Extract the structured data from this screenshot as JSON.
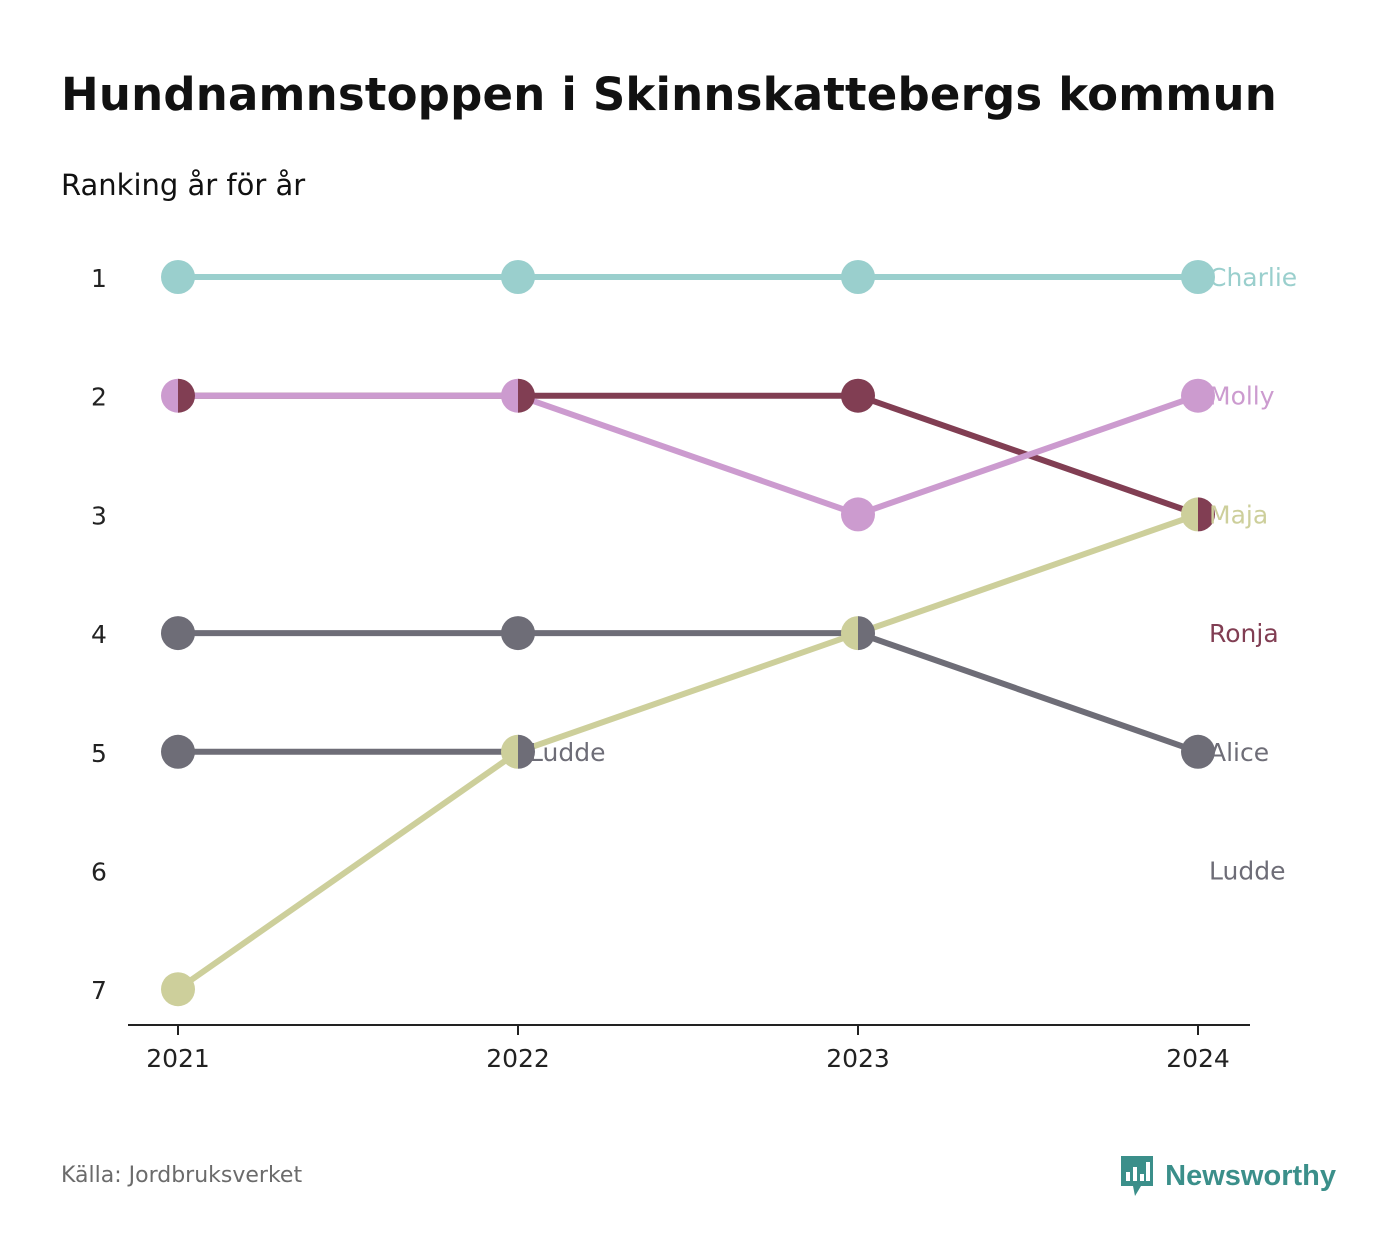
{
  "title": "Hundnamnstoppen i Skinnskattebergs kommun",
  "subtitle": "Ranking år för år",
  "source": "Källa: Jordbruksverket",
  "brand": {
    "name": "Newsworthy",
    "icon": "newsworthy-logo-icon",
    "color": "#3b8f8a"
  },
  "chart_data": {
    "type": "line",
    "x": [
      "2021",
      "2022",
      "2023",
      "2024"
    ],
    "y_ticks": [
      "1",
      "2",
      "3",
      "4",
      "5",
      "6",
      "7"
    ],
    "ylim": [
      1,
      7
    ],
    "y_inverted": true,
    "grid": false,
    "series": [
      {
        "name": "Charlie",
        "color": "#9acfcd",
        "values": [
          1,
          1,
          1,
          1
        ],
        "end_label": "Charlie",
        "end_rank": 1
      },
      {
        "name": "Ronja",
        "color": "#813e53",
        "values": [
          2,
          2,
          2,
          3
        ],
        "end_label": "Ronja",
        "end_rank": 4
      },
      {
        "name": "Molly",
        "color": "#cc9bcf",
        "values": [
          2,
          2,
          3,
          2
        ],
        "end_label": "Molly",
        "end_rank": 2
      },
      {
        "name": "Alice",
        "color": "#6e6d77",
        "values": [
          4,
          4,
          4,
          5
        ],
        "end_label": "Alice",
        "end_rank": 5
      },
      {
        "name": "Ludde",
        "color": "#6e6d77",
        "values": [
          5,
          5,
          null,
          null
        ],
        "end_label": "Ludde",
        "end_rank": 6
      },
      {
        "name": "Maja",
        "color": "#cdcf9b",
        "values": [
          7,
          5,
          4,
          3
        ],
        "end_label": "Maja",
        "end_rank": 3
      }
    ],
    "inline_labels": [
      {
        "text": "Ludde",
        "color": "#6e6d77",
        "x": "2022",
        "y": 5
      }
    ]
  }
}
